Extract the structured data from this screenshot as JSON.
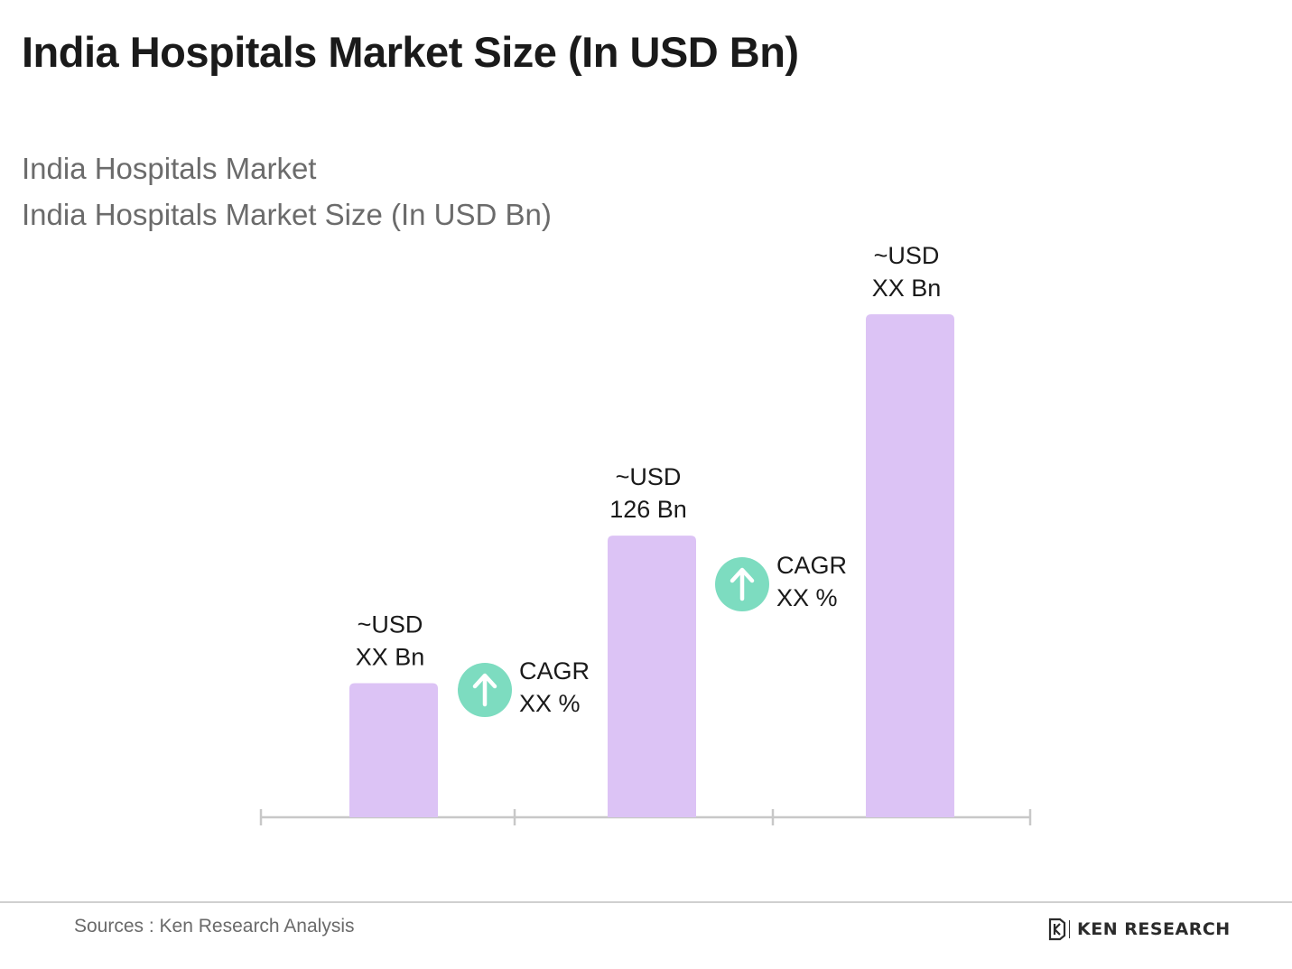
{
  "header": {
    "title": "India Hospitals Market Size (In USD Bn)",
    "subtitle_1": "India Hospitals Market",
    "subtitle_2": "India Hospitals Market Size (In USD Bn)"
  },
  "chart_data": {
    "type": "bar",
    "categories": [
      "",
      "",
      ""
    ],
    "values": [
      60,
      126,
      225
    ],
    "value_labels": [
      [
        "~USD",
        "XX Bn"
      ],
      [
        "~USD",
        "126 Bn"
      ],
      [
        "~USD",
        "XX Bn"
      ]
    ],
    "ylim": [
      0,
      250
    ],
    "grid": false,
    "cagr_annotations": [
      {
        "between": [
          0,
          1
        ],
        "lines": [
          "CAGR",
          "XX %"
        ],
        "icon": "arrow-up-circle-icon"
      },
      {
        "between": [
          1,
          2
        ],
        "lines": [
          "CAGR",
          "XX %"
        ],
        "icon": "arrow-up-circle-icon"
      }
    ],
    "colors": {
      "bar": "#dcc3f5",
      "axis": "#c8c8c8",
      "cagr_icon": "#7ddcc0",
      "label": "#1a1a1a"
    }
  },
  "footer": {
    "source": "Sources : Ken Research Analysis",
    "brand": "KEN RESEARCH",
    "brand_icon": "ken-research-logo-icon"
  }
}
